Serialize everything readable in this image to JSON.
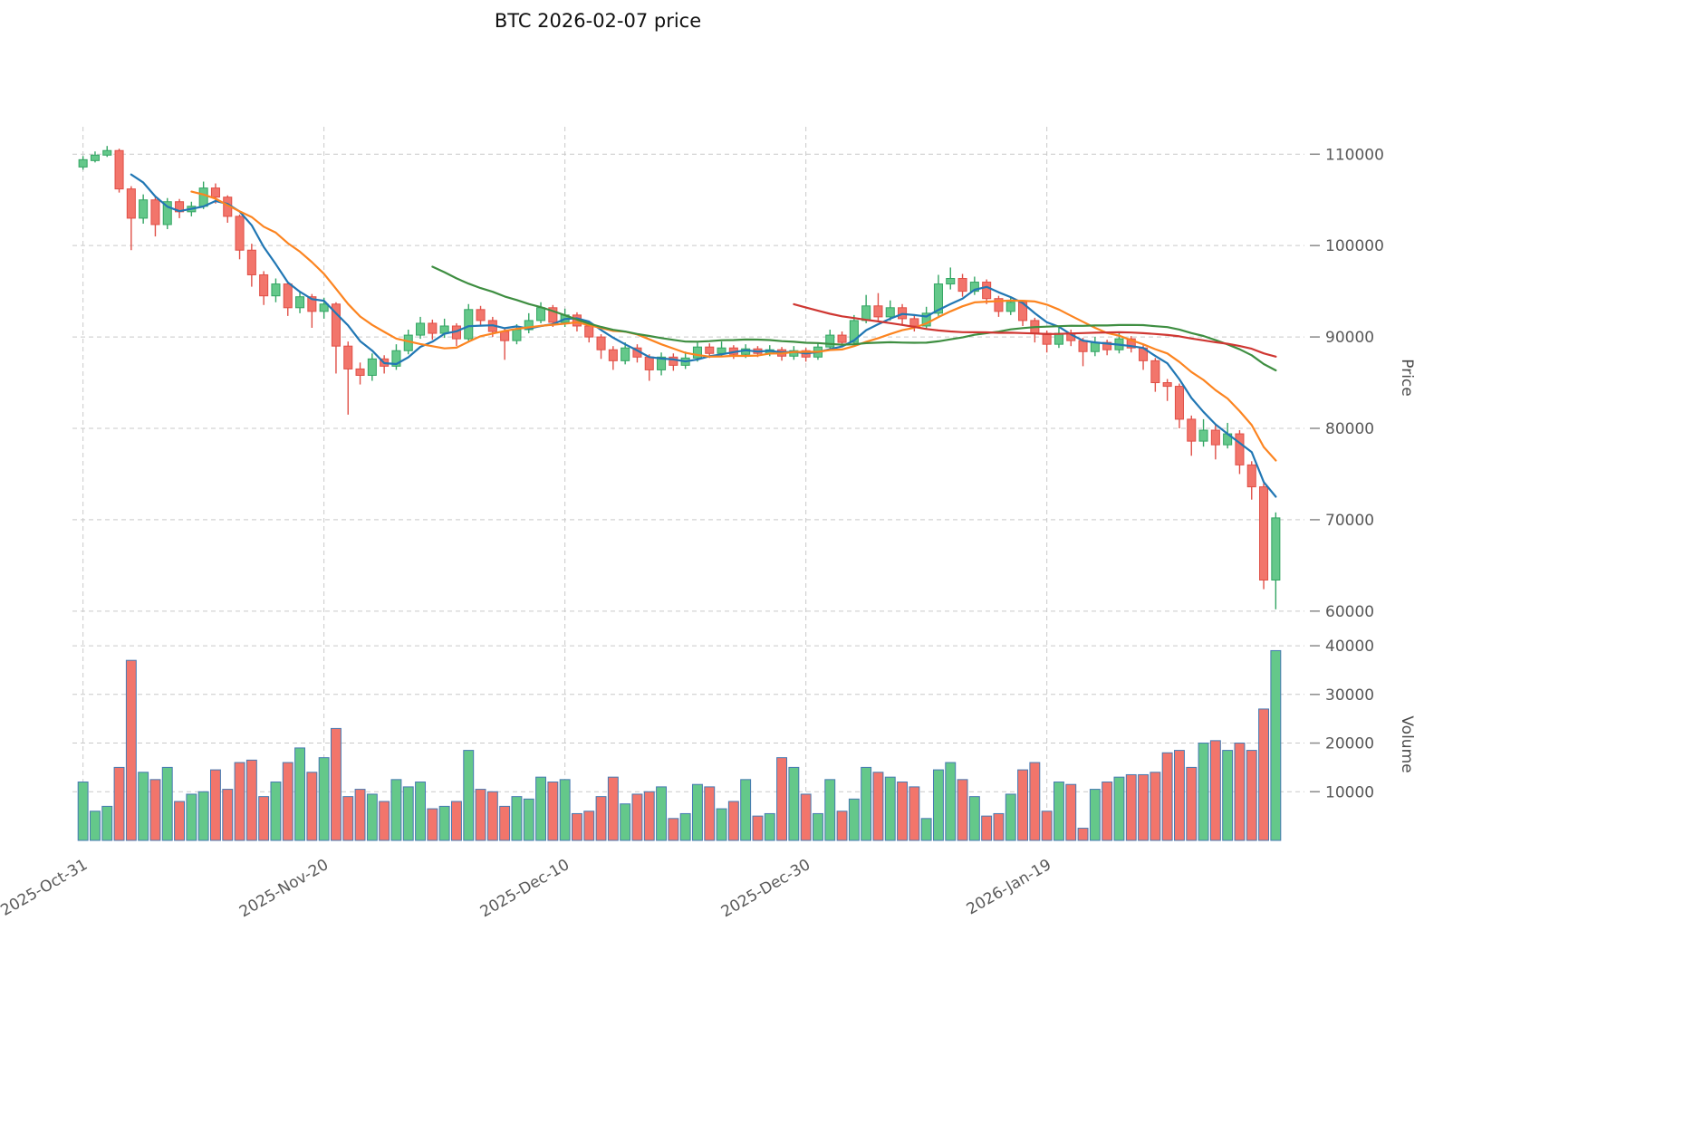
{
  "chart_data": {
    "type": "candlestick",
    "title": "BTC  2026-02-07  price",
    "ylabel": "Price",
    "ylabel2": "Volume",
    "price_ticks": [
      60000,
      70000,
      80000,
      90000,
      100000,
      110000
    ],
    "volume_ticks": [
      10000,
      20000,
      30000,
      40000
    ],
    "x_ticks": [
      {
        "index": 0,
        "label": "2025-Oct-31"
      },
      {
        "index": 20,
        "label": "2025-Nov-20"
      },
      {
        "index": 40,
        "label": "2025-Dec-10"
      },
      {
        "index": 60,
        "label": "2025-Dec-30"
      },
      {
        "index": 80,
        "label": "2026-Jan-19"
      }
    ],
    "price_axis_range": [
      58000,
      113000
    ],
    "volume_axis_range": [
      0,
      40200
    ],
    "moving_average_windows": [
      5,
      10,
      30,
      60
    ],
    "open": [
      108600,
      109300,
      109900,
      110400,
      106200,
      103000,
      105000,
      102300,
      104800,
      103700,
      104300,
      106300,
      105300,
      103200,
      99500,
      96800,
      94500,
      95800,
      93200,
      94400,
      92800,
      93600,
      89000,
      86500,
      85800,
      87600,
      86800,
      88500,
      90200,
      91500,
      90400,
      91200,
      89800,
      93000,
      91800,
      90600,
      89600,
      90800,
      91800,
      93200,
      91600,
      92400,
      91200,
      90000,
      88600,
      87400,
      88800,
      87800,
      86400,
      87800,
      86900,
      87700,
      88900,
      88200,
      88800,
      88100,
      88700,
      88200,
      88600,
      87900,
      88500,
      87800,
      88900,
      90200,
      89400,
      91800,
      93400,
      92200,
      93200,
      92000,
      91200,
      92600,
      95800,
      96400,
      95000,
      96000,
      94200,
      92800,
      93800,
      91800,
      90400,
      89200,
      90400,
      89600,
      88400,
      89400,
      88600,
      89800,
      88800,
      87400,
      85000,
      84600,
      81000,
      78600,
      79800,
      78200,
      79400,
      76000,
      73600,
      63400
    ],
    "high": [
      109800,
      110300,
      110900,
      110600,
      106500,
      105600,
      105300,
      105200,
      105100,
      104800,
      107000,
      106800,
      105500,
      103400,
      100200,
      97200,
      96400,
      96000,
      95000,
      94700,
      94300,
      93800,
      89500,
      87200,
      88200,
      88000,
      89200,
      90800,
      92200,
      91900,
      92000,
      91500,
      93600,
      93400,
      92200,
      91000,
      91400,
      92600,
      93800,
      93500,
      93100,
      92700,
      91500,
      90300,
      89000,
      89400,
      89200,
      88100,
      88300,
      88200,
      88400,
      89400,
      89300,
      89500,
      89100,
      89200,
      89000,
      89100,
      88900,
      89000,
      88800,
      89400,
      90800,
      90600,
      92400,
      94600,
      94800,
      94000,
      93600,
      92400,
      93300,
      96800,
      97600,
      96900,
      96600,
      96300,
      94500,
      94400,
      94000,
      92100,
      90700,
      91000,
      90800,
      89900,
      90000,
      89700,
      90600,
      90100,
      89100,
      87700,
      85400,
      84900,
      81400,
      81000,
      80400,
      80600,
      79800,
      76400,
      74000,
      70800
    ],
    "low": [
      108300,
      109100,
      109700,
      105800,
      99500,
      102400,
      101000,
      101800,
      103000,
      103200,
      104000,
      104600,
      102500,
      98500,
      95500,
      93500,
      93800,
      92300,
      92600,
      91000,
      92000,
      86000,
      81500,
      84800,
      85200,
      86000,
      86400,
      88100,
      89800,
      89700,
      89900,
      89000,
      89500,
      91200,
      90000,
      87500,
      89200,
      90400,
      91500,
      91100,
      91100,
      90600,
      89400,
      87600,
      86400,
      87000,
      87200,
      85200,
      85800,
      86300,
      86500,
      87300,
      87700,
      87900,
      87600,
      87700,
      87800,
      87900,
      87400,
      87500,
      87300,
      87500,
      88600,
      88900,
      89200,
      91500,
      91800,
      91800,
      91400,
      90600,
      90900,
      92300,
      95200,
      94400,
      94600,
      93600,
      92200,
      92400,
      91200,
      89400,
      88300,
      88800,
      89000,
      86800,
      87900,
      88000,
      88200,
      88300,
      86400,
      84000,
      83000,
      80000,
      77000,
      78000,
      76600,
      77800,
      75000,
      72200,
      62400,
      60200
    ],
    "close": [
      109400,
      109900,
      110400,
      106200,
      103000,
      105000,
      102300,
      104800,
      103700,
      104300,
      106300,
      105300,
      103200,
      99500,
      96800,
      94500,
      95800,
      93200,
      94400,
      92800,
      93600,
      89000,
      86500,
      85800,
      87600,
      86800,
      88500,
      90200,
      91500,
      90400,
      91200,
      89800,
      93000,
      91800,
      90600,
      89600,
      90800,
      91800,
      93200,
      91600,
      92400,
      91200,
      90000,
      88600,
      87400,
      88800,
      87800,
      86400,
      87800,
      86900,
      87700,
      88900,
      88200,
      88800,
      88100,
      88700,
      88200,
      88600,
      87900,
      88500,
      87800,
      88900,
      90200,
      89400,
      91800,
      93400,
      92200,
      93200,
      92000,
      91200,
      92600,
      95800,
      96400,
      95000,
      96000,
      94200,
      92800,
      93800,
      91800,
      90400,
      89200,
      90400,
      89600,
      88400,
      89400,
      88600,
      89800,
      88800,
      87400,
      85000,
      84600,
      81000,
      78600,
      79800,
      78200,
      79400,
      76000,
      73600,
      63400,
      70200
    ],
    "volume": [
      12000,
      6000,
      7000,
      15000,
      37000,
      14000,
      12500,
      15000,
      8000,
      9500,
      10000,
      14500,
      10500,
      16000,
      16500,
      9000,
      12000,
      16000,
      19000,
      14000,
      17000,
      23000,
      9000,
      10500,
      9500,
      8000,
      12500,
      11000,
      12000,
      6500,
      7000,
      8000,
      18500,
      10500,
      10000,
      7000,
      9000,
      8500,
      13000,
      12000,
      12500,
      5500,
      6000,
      9000,
      13000,
      7500,
      9500,
      10000,
      11000,
      4500,
      5500,
      11500,
      11000,
      6500,
      8000,
      12500,
      5000,
      5500,
      17000,
      15000,
      9500,
      5500,
      12500,
      6000,
      8500,
      15000,
      14000,
      13000,
      12000,
      11000,
      4500,
      14500,
      16000,
      12500,
      9000,
      5000,
      5500,
      9500,
      14500,
      16000,
      6000,
      12000,
      11500,
      2500,
      10500,
      12000,
      13000,
      13500,
      13500,
      14000,
      18000,
      18500,
      15000,
      20000,
      20500,
      18500,
      20000,
      18500,
      27000,
      39000
    ]
  },
  "style": {
    "up": "#64c88a",
    "up_edge": "#33a563",
    "down": "#f2756b",
    "down_edge": "#e04f46",
    "volume_edge": "#4679b2",
    "grid": "#c9c9c9",
    "tick_mark": "#8a8a8a",
    "ma": {
      "5": "#2177b4",
      "10": "#fc8420",
      "30": "#3e8e41",
      "60": "#cf3732"
    }
  }
}
